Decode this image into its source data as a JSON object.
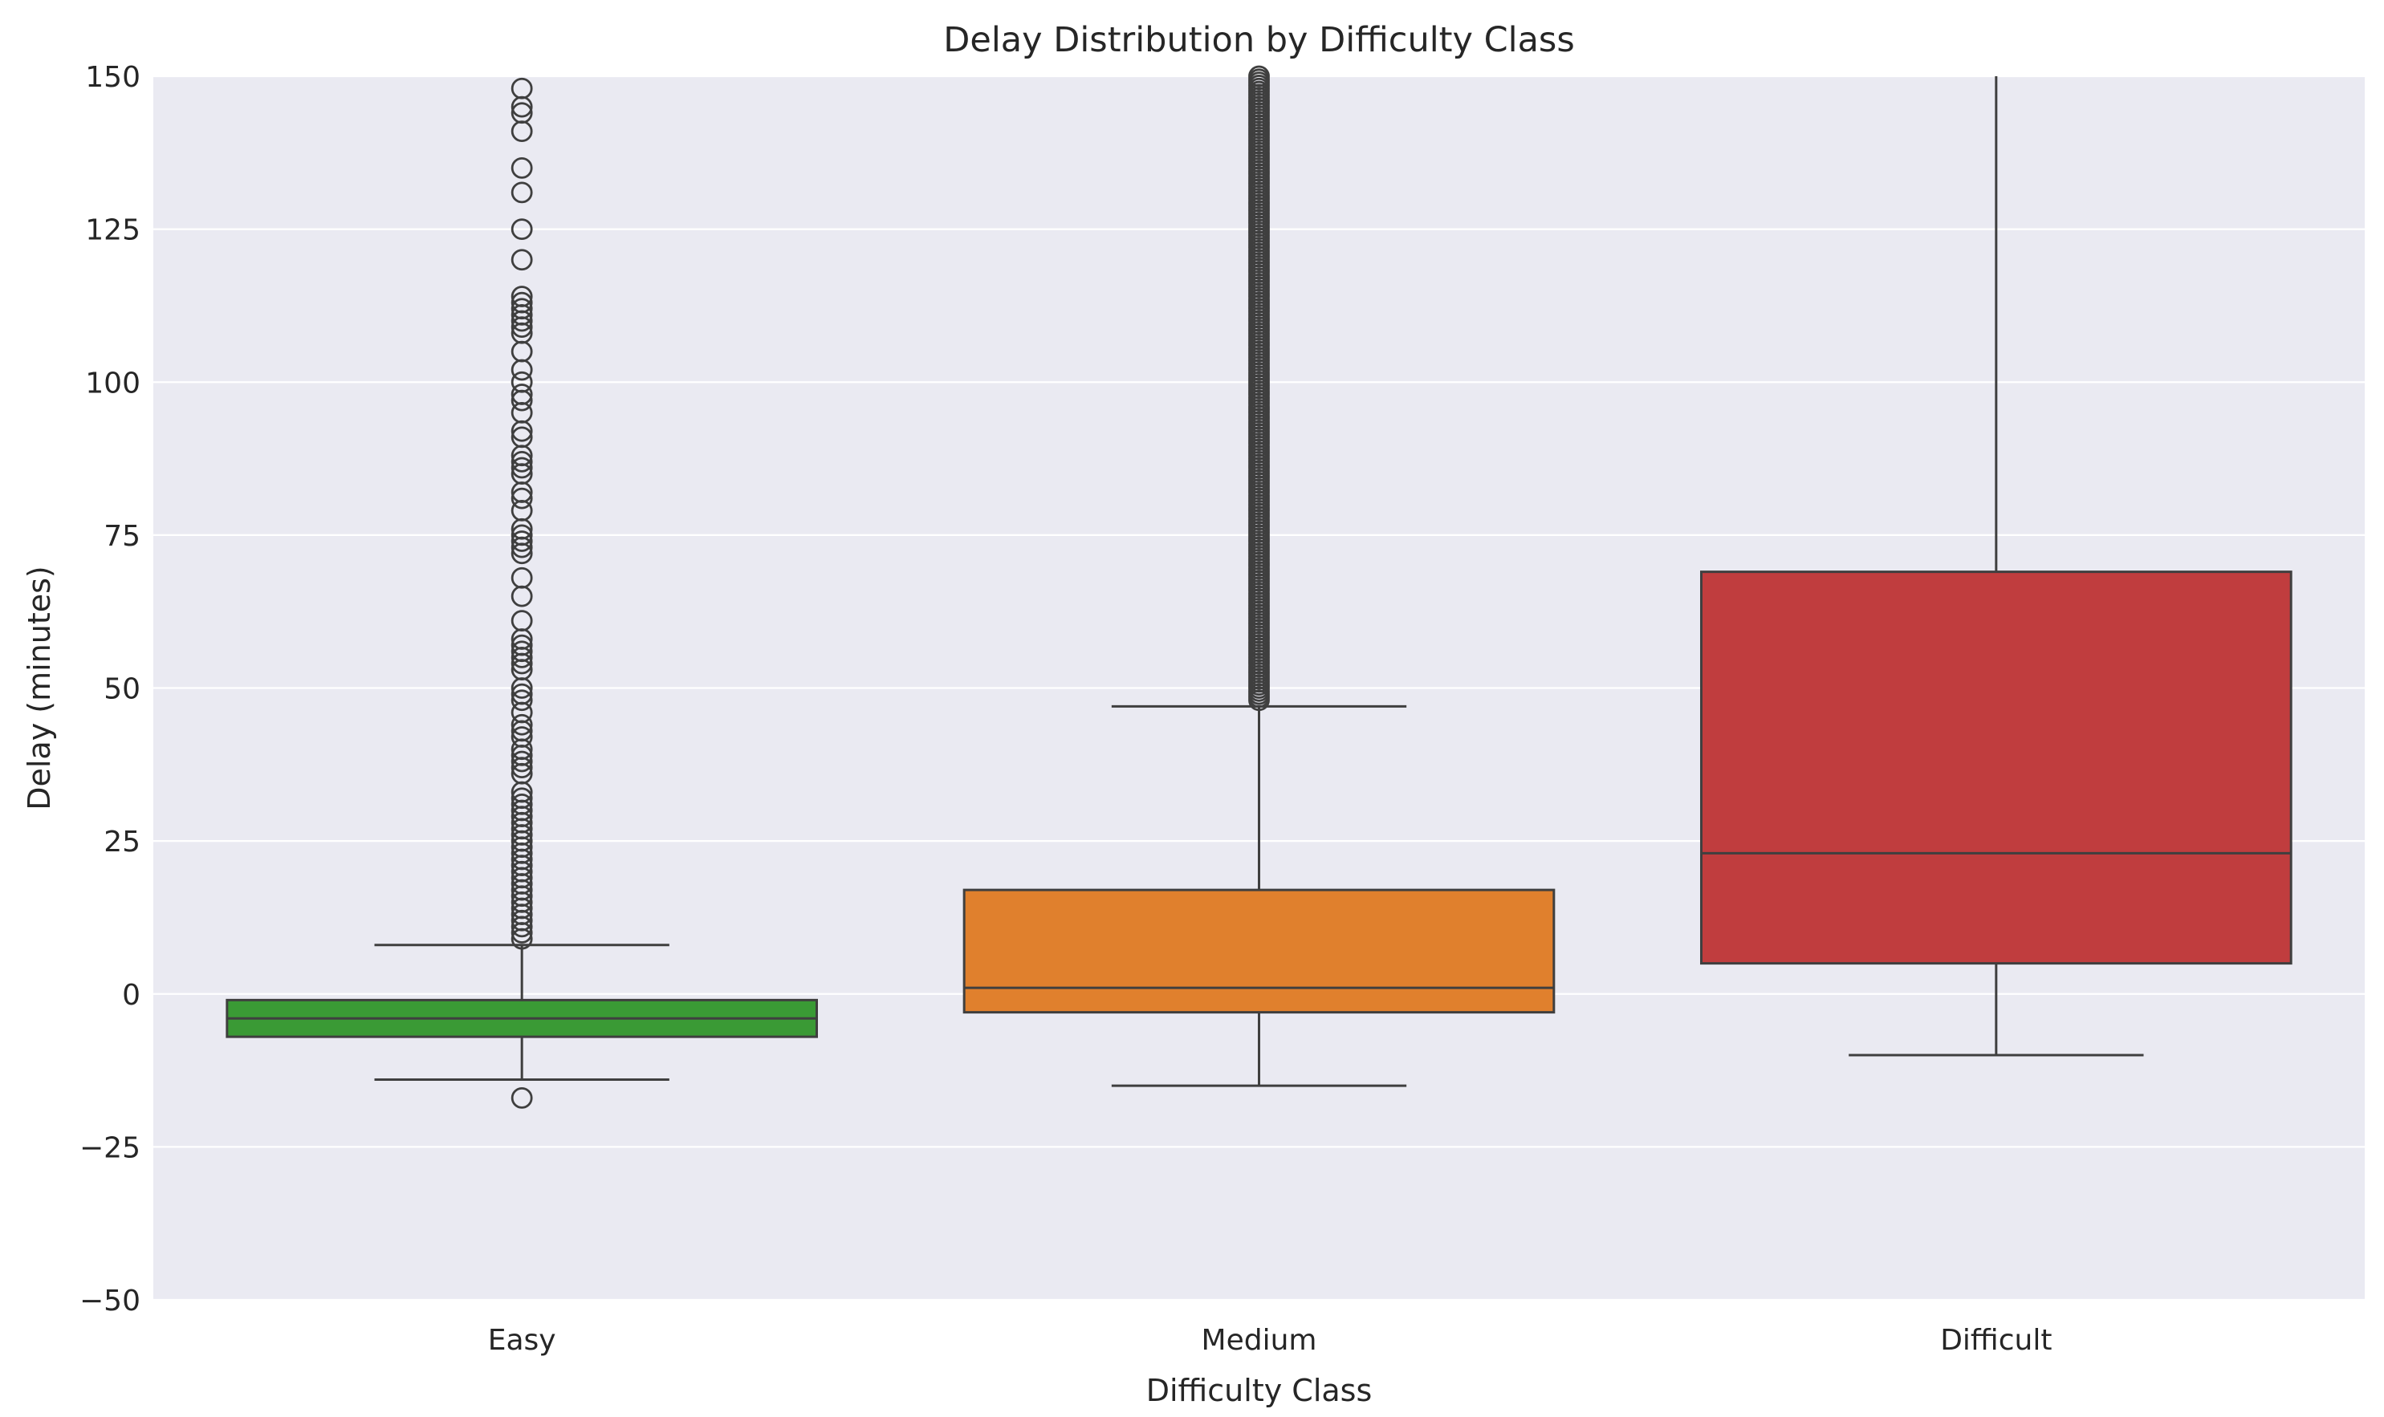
{
  "chart_data": {
    "type": "box",
    "title": "Delay Distribution by Difficulty Class",
    "xlabel": "Difficulty Class",
    "ylabel": "Delay (minutes)",
    "ylim": [
      -50,
      150
    ],
    "yticks": [
      -50,
      -25,
      0,
      25,
      50,
      75,
      100,
      125,
      150
    ],
    "ytick_labels": [
      "−50",
      "−25",
      "0",
      "25",
      "50",
      "75",
      "100",
      "125",
      "150"
    ],
    "grid": true,
    "categories": [
      "Easy",
      "Medium",
      "Difficult"
    ],
    "boxes": [
      {
        "category": "Easy",
        "color": "#3a9a35",
        "whisker_low": -14,
        "q1": -7,
        "median": -4,
        "q3": -1,
        "whisker_high": 8,
        "outliers": [
          -17,
          9,
          10,
          11,
          12,
          13,
          14,
          15,
          16,
          17,
          18,
          19,
          20,
          21,
          22,
          23,
          24,
          25,
          26,
          27,
          28,
          29,
          30,
          31,
          32,
          33,
          36,
          37,
          38,
          39,
          40,
          42,
          43,
          44,
          46,
          48,
          49,
          50,
          53,
          54,
          55,
          56,
          57,
          58,
          61,
          65,
          68,
          72,
          73,
          74,
          75,
          76,
          79,
          81,
          82,
          85,
          86,
          87,
          88,
          91,
          92,
          95,
          97,
          98,
          100,
          102,
          105,
          108,
          109,
          110,
          111,
          112,
          113,
          114,
          120,
          125,
          131,
          135,
          141,
          144,
          145,
          148
        ]
      },
      {
        "category": "Medium",
        "color": "#e0802d",
        "whisker_low": -15,
        "q1": -3,
        "median": 1,
        "q3": 17,
        "whisker_high": 47,
        "outliers_range": [
          48,
          150
        ]
      },
      {
        "category": "Difficult",
        "color": "#c03d3e",
        "whisker_low": -10,
        "q1": 5,
        "median": 23,
        "q3": 69,
        "whisker_high": 150
      }
    ]
  }
}
